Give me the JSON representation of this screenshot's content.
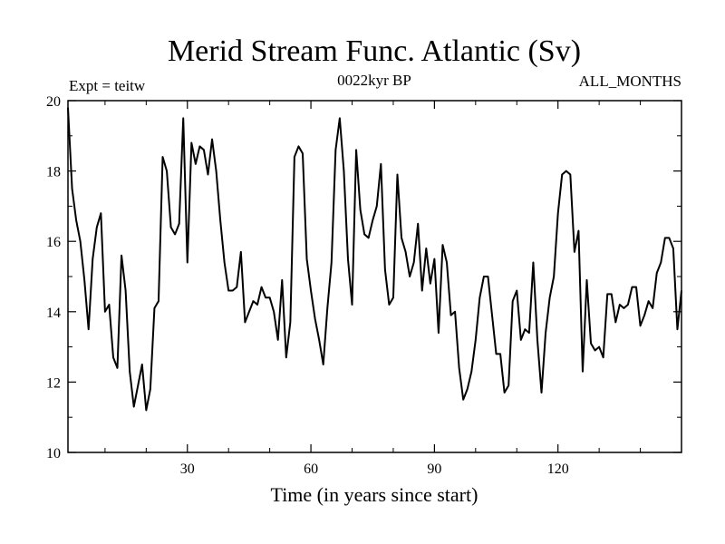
{
  "chart_data": {
    "type": "line",
    "title": "Merid Stream Func. Atlantic (Sv)",
    "experiment_label": "Expt = teitw",
    "period_label": "0022kyr BP",
    "months_label": "ALL_MONTHS",
    "xlabel": "Time (in years since start)",
    "ylabel": "",
    "xlim": [
      1,
      150
    ],
    "ylim": [
      10,
      20
    ],
    "x_ticks": [
      30,
      60,
      90,
      120
    ],
    "x_tick_labels": [
      "30",
      "60",
      "90",
      "120"
    ],
    "y_ticks": [
      10,
      12,
      14,
      16,
      18,
      20
    ],
    "y_tick_labels": [
      "10",
      "12",
      "14",
      "16",
      "18",
      "20"
    ],
    "series": [
      {
        "name": "Merid Stream Func. Atlantic",
        "color": "#000000",
        "x": [
          1,
          2,
          3,
          4,
          5,
          6,
          7,
          8,
          9,
          10,
          11,
          12,
          13,
          14,
          15,
          16,
          17,
          18,
          19,
          20,
          21,
          22,
          23,
          24,
          25,
          26,
          27,
          28,
          29,
          30,
          31,
          32,
          33,
          34,
          35,
          36,
          37,
          38,
          39,
          40,
          41,
          42,
          43,
          44,
          45,
          46,
          47,
          48,
          49,
          50,
          51,
          52,
          53,
          54,
          55,
          56,
          57,
          58,
          59,
          60,
          61,
          62,
          63,
          64,
          65,
          66,
          67,
          68,
          69,
          70,
          71,
          72,
          73,
          74,
          75,
          76,
          77,
          78,
          79,
          80,
          81,
          82,
          83,
          84,
          85,
          86,
          87,
          88,
          89,
          90,
          91,
          92,
          93,
          94,
          95,
          96,
          97,
          98,
          99,
          100,
          101,
          102,
          103,
          104,
          105,
          106,
          107,
          108,
          109,
          110,
          111,
          112,
          113,
          114,
          115,
          116,
          117,
          118,
          119,
          120,
          121,
          122,
          123,
          124,
          125,
          126,
          127,
          128,
          129,
          130,
          131,
          132,
          133,
          134,
          135,
          136,
          137,
          138,
          139,
          140,
          141,
          142,
          143,
          144,
          145,
          146,
          147,
          148,
          149,
          150
        ],
        "y": [
          19.8,
          17.5,
          16.6,
          16.0,
          14.9,
          13.5,
          15.5,
          16.4,
          16.8,
          14.0,
          14.2,
          12.7,
          12.4,
          15.6,
          14.6,
          12.3,
          11.3,
          11.9,
          12.5,
          11.2,
          11.8,
          14.1,
          14.3,
          18.4,
          18.0,
          16.4,
          16.2,
          16.5,
          19.5,
          15.4,
          18.8,
          18.2,
          18.7,
          18.6,
          17.9,
          18.9,
          18.0,
          16.6,
          15.4,
          14.6,
          14.6,
          14.7,
          15.7,
          13.7,
          14.0,
          14.3,
          14.2,
          14.7,
          14.4,
          14.4,
          14.0,
          13.2,
          14.9,
          12.7,
          13.7,
          18.4,
          18.7,
          18.5,
          15.5,
          14.6,
          13.8,
          13.2,
          12.5,
          14.1,
          15.4,
          18.6,
          19.5,
          18.0,
          15.5,
          14.2,
          18.6,
          16.9,
          16.2,
          16.1,
          16.6,
          17.0,
          18.2,
          15.2,
          14.2,
          14.4,
          17.9,
          16.1,
          15.7,
          15.0,
          15.4,
          16.5,
          14.6,
          15.8,
          14.8,
          15.5,
          13.4,
          15.9,
          15.4,
          13.9,
          14.0,
          12.4,
          11.5,
          11.8,
          12.3,
          13.2,
          14.4,
          15.0,
          15.0,
          13.9,
          12.8,
          12.8,
          11.7,
          11.9,
          14.3,
          14.6,
          13.2,
          13.5,
          13.4,
          15.4,
          13.2,
          11.7,
          13.4,
          14.4,
          15.0,
          16.8,
          17.9,
          18.0,
          17.9,
          15.7,
          16.3,
          12.3,
          14.9,
          13.1,
          12.9,
          13.0,
          12.7,
          14.5,
          14.5,
          13.7,
          14.2,
          14.1,
          14.2,
          14.7,
          14.7,
          13.6,
          13.9,
          14.3,
          14.1,
          15.1,
          15.4,
          16.1,
          16.1,
          15.8,
          13.5,
          14.6
        ]
      }
    ]
  }
}
